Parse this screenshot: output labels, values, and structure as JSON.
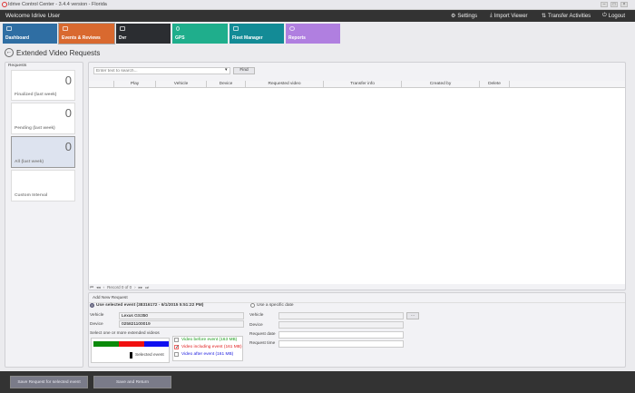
{
  "window": {
    "title": "Idrive Control Center - 3.4.4 version - Florida"
  },
  "header": {
    "welcome": "Welcome Idrive User",
    "settings": "Settings",
    "import_viewer": "Import Viewer",
    "transfer_activities": "Transfer Activities",
    "logout": "Logout"
  },
  "tiles": [
    {
      "label": "Dashboard",
      "color": "#2f6ea3"
    },
    {
      "label": "Events & Reviews",
      "color": "#d9692f"
    },
    {
      "label": "Dvr",
      "color": "#2b2d31"
    },
    {
      "label": "GPS",
      "color": "#1fae8c"
    },
    {
      "label": "Fleet Manager",
      "color": "#138b96"
    },
    {
      "label": "Reports",
      "color": "#b07fe0"
    }
  ],
  "page": {
    "title": "Extended Video Requests"
  },
  "requests": {
    "title": "Requests",
    "cards": [
      {
        "count": "0",
        "label": "Finalized (last week)"
      },
      {
        "count": "0",
        "label": "Pending (last week)"
      },
      {
        "count": "0",
        "label": "All (last week)",
        "selected": true
      },
      {
        "count": "",
        "label": "Custom Interval"
      }
    ]
  },
  "search": {
    "placeholder": "Enter text to search...",
    "find": "Find"
  },
  "table": {
    "columns": [
      "Play",
      "Vehicle",
      "Device",
      "Requested video",
      "Transfer info",
      "Created by",
      "Delete"
    ],
    "rows": []
  },
  "pager": {
    "text": "Record 0 of 0"
  },
  "add_request": {
    "title": "Add New Request",
    "use_selected": "Use selected event (38316172 - 6/1/2015 5:51:22 PM)",
    "vehicle_label": "Vehicle",
    "vehicle_value": "Lexus GS350",
    "device_label": "Device",
    "device_value": "025821100019",
    "select_label": "Select one or more extended videos",
    "selected_event": "Selected event",
    "videos": [
      {
        "label": "Video before event (163 MB)",
        "color": "#1a9a1a",
        "checked": false
      },
      {
        "label": "Video including event (161 MB)",
        "color": "#e02020",
        "checked": true
      },
      {
        "label": "Video after event (161 MB)",
        "color": "#2020e0",
        "checked": false
      }
    ],
    "use_specific": "Use a specific date",
    "r_vehicle": "Vehicle",
    "r_device": "Device",
    "request_date": "Request date",
    "request_time": "Request time",
    "browse": "..."
  },
  "footer": {
    "save_selected": "Save Request for selected event",
    "save_return": "Save and Return"
  }
}
